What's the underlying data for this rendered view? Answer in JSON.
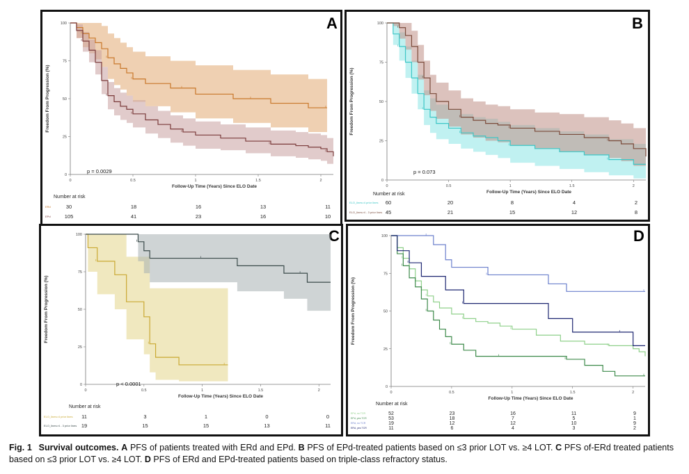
{
  "caption": {
    "fig_label": "Fig. 1",
    "title": "Survival outcomes.",
    "parts": [
      {
        "letter": "A",
        "text": "PFS of patients treated with ERd and EPd."
      },
      {
        "letter": "B",
        "text": "PFS of EPd-treated patients based on ≤3 prior LOT vs. ≥4 LOT."
      },
      {
        "letter": "C",
        "text": "PFS of-ERd treated patients based on ≤3 prior LOT vs. ≥4 LOT."
      },
      {
        "letter": "D",
        "text": "PFS of ERd and EPd-treated patients based on triple-class refractory status."
      }
    ]
  },
  "chart_data": [
    {
      "type": "line",
      "panel_letter": "A",
      "xlabel": "Follow-Up Time (Years) Since ELO Date",
      "ylabel": "Freedom From Progression (%)",
      "xlim": [
        0,
        2.1
      ],
      "ylim": [
        0,
        100
      ],
      "x_ticks": [
        0,
        0.5,
        1,
        1.5,
        2
      ],
      "x_tick_labels": [
        "0",
        "0.5",
        "1",
        "1.5",
        "2"
      ],
      "y_ticks": [
        0,
        25,
        50,
        75,
        100
      ],
      "annotation": "p = 0.0029",
      "risk_table": {
        "title": "Number at risk",
        "times": [
          0,
          0.5,
          1,
          1.5,
          2
        ],
        "rows": [
          {
            "label": "ERd",
            "counts": [
              "30",
              "18",
              "16",
              "13",
              "11"
            ]
          },
          {
            "label": "EPd",
            "counts": [
              "105",
              "41",
              "23",
              "16",
              "10"
            ]
          }
        ]
      },
      "series": [
        {
          "label": "ERd",
          "color": "#c8772a",
          "band_color": "#e2aa73",
          "x": [
            0,
            0.05,
            0.1,
            0.15,
            0.2,
            0.25,
            0.3,
            0.35,
            0.4,
            0.45,
            0.5,
            0.6,
            0.7,
            0.8,
            0.9,
            1.0,
            1.15,
            1.3,
            1.45,
            1.6,
            1.75,
            1.9,
            2.05
          ],
          "y": [
            100,
            97,
            93,
            90,
            87,
            83,
            77,
            73,
            70,
            67,
            63,
            60,
            60,
            57,
            57,
            53,
            53,
            50,
            50,
            47,
            47,
            44,
            44
          ],
          "lower": [
            100,
            90,
            84,
            80,
            76,
            71,
            63,
            59,
            56,
            52,
            48,
            45,
            45,
            41,
            41,
            37,
            37,
            34,
            34,
            31,
            31,
            28,
            28
          ],
          "upper": [
            100,
            100,
            100,
            100,
            100,
            98,
            93,
            90,
            87,
            84,
            81,
            78,
            78,
            75,
            75,
            72,
            72,
            69,
            69,
            66,
            66,
            63,
            63
          ]
        },
        {
          "label": "EPd",
          "color": "#7a3a3a",
          "band_color": "#c9a0a0",
          "x": [
            0,
            0.05,
            0.1,
            0.15,
            0.2,
            0.25,
            0.3,
            0.35,
            0.4,
            0.45,
            0.5,
            0.6,
            0.7,
            0.8,
            0.9,
            1.0,
            1.2,
            1.4,
            1.6,
            1.8,
            1.9,
            2.0,
            2.05,
            2.1
          ],
          "y": [
            100,
            95,
            88,
            82,
            74,
            62,
            52,
            48,
            45,
            43,
            40,
            36,
            33,
            30,
            28,
            26,
            24,
            22,
            20,
            19,
            18,
            17,
            15,
            12
          ],
          "lower": [
            100,
            90,
            81,
            74,
            66,
            53,
            43,
            39,
            36,
            34,
            31,
            27,
            24,
            21,
            19,
            17,
            16,
            14,
            12,
            11,
            10,
            9,
            7,
            5
          ],
          "upper": [
            100,
            99,
            94,
            89,
            82,
            71,
            61,
            57,
            54,
            52,
            49,
            45,
            42,
            39,
            37,
            35,
            33,
            31,
            29,
            28,
            27,
            26,
            24,
            21
          ]
        }
      ]
    },
    {
      "type": "line",
      "panel_letter": "B",
      "xlabel": "Follow-Up Time (Years) Since ELO Date",
      "ylabel": "Freedom From Progression (%)",
      "xlim": [
        0,
        2.1
      ],
      "ylim": [
        0,
        100
      ],
      "x_ticks": [
        0,
        0.5,
        1,
        1.5,
        2
      ],
      "x_tick_labels": [
        "0",
        "0.5",
        "1",
        "1.5",
        "2"
      ],
      "y_ticks": [
        0,
        25,
        50,
        75,
        100
      ],
      "annotation": "p = 0.073",
      "risk_table": {
        "title": "Number at risk",
        "times": [
          0,
          0.5,
          1,
          1.5,
          2
        ],
        "rows": [
          {
            "label": "ELO_lines=4 prior lines",
            "counts": [
              "60",
              "20",
              "8",
              "4",
              "2"
            ]
          },
          {
            "label": "ELO_lines>4 - 3 prior lines",
            "counts": [
              "45",
              "21",
              "15",
              "12",
              "8"
            ]
          }
        ]
      },
      "series": [
        {
          "label": "ELO_lines=4 prior lines",
          "color": "#3cc6c6",
          "band_color": "#8ce6e6",
          "x": [
            0,
            0.05,
            0.1,
            0.15,
            0.2,
            0.25,
            0.3,
            0.35,
            0.4,
            0.5,
            0.6,
            0.7,
            0.8,
            0.9,
            1.0,
            1.2,
            1.4,
            1.6,
            1.8,
            2.0,
            2.1
          ],
          "y": [
            100,
            93,
            85,
            75,
            65,
            55,
            45,
            40,
            36,
            33,
            30,
            28,
            27,
            25,
            22,
            20,
            18,
            16,
            13,
            10,
            10
          ],
          "lower": [
            100,
            86,
            76,
            65,
            55,
            45,
            35,
            30,
            26,
            23,
            20,
            18,
            16,
            14,
            11,
            9,
            7,
            5,
            3,
            1,
            1
          ],
          "upper": [
            100,
            100,
            94,
            85,
            76,
            67,
            57,
            52,
            48,
            45,
            42,
            40,
            39,
            37,
            35,
            33,
            31,
            29,
            26,
            23,
            23
          ]
        },
        {
          "label": "ELO_lines>4 - 3 prior lines",
          "color": "#7a4a3a",
          "band_color": "#bf8f86",
          "x": [
            0,
            0.05,
            0.1,
            0.15,
            0.2,
            0.25,
            0.3,
            0.35,
            0.4,
            0.5,
            0.6,
            0.7,
            0.8,
            0.9,
            1.0,
            1.2,
            1.4,
            1.6,
            1.8,
            1.9,
            2.0,
            2.1
          ],
          "y": [
            100,
            100,
            97,
            92,
            85,
            75,
            65,
            55,
            50,
            45,
            40,
            38,
            36,
            35,
            33,
            31,
            29,
            27,
            25,
            23,
            20,
            15
          ],
          "lower": [
            100,
            98,
            90,
            83,
            75,
            64,
            54,
            44,
            39,
            34,
            29,
            27,
            25,
            24,
            22,
            20,
            18,
            16,
            14,
            12,
            9,
            4
          ],
          "upper": [
            100,
            100,
            100,
            100,
            95,
            86,
            76,
            67,
            62,
            57,
            52,
            50,
            48,
            47,
            45,
            43,
            42,
            40,
            38,
            36,
            33,
            28
          ]
        }
      ]
    },
    {
      "type": "line",
      "panel_letter": "C",
      "xlabel": "Follow-Up Time (Years) Since ELO Date",
      "ylabel": "Freedom From Progression (%)",
      "xlim": [
        0,
        2.1
      ],
      "ylim": [
        0,
        100
      ],
      "x_ticks": [
        0,
        0.5,
        1,
        1.5,
        2
      ],
      "x_tick_labels": [
        "0",
        "0.5",
        "1",
        "1.5",
        "2"
      ],
      "y_ticks": [
        0,
        25,
        50,
        75,
        100
      ],
      "annotation": "p < 0.0001",
      "risk_table": {
        "title": "Number at risk",
        "times": [
          0,
          0.5,
          1,
          1.5,
          2
        ],
        "rows": [
          {
            "label": "ELO_lines=4 prior lines",
            "counts": [
              "11",
              "3",
              "1",
              "0",
              "0"
            ]
          },
          {
            "label": "ELO_lines>4 - 3 prior lines",
            "counts": [
              "19",
              "15",
              "15",
              "13",
              "11"
            ]
          }
        ]
      },
      "series": [
        {
          "label": "ELO_lines=4 prior lines",
          "color": "#c9a832",
          "band_color": "#e4d68a",
          "x": [
            0,
            0.02,
            0.1,
            0.25,
            0.35,
            0.5,
            0.55,
            0.6,
            0.8,
            1.0,
            1.2,
            1.22
          ],
          "y": [
            100,
            91,
            82,
            73,
            55,
            45,
            27,
            18,
            13,
            13,
            13,
            13
          ],
          "lower": [
            100,
            75,
            60,
            50,
            30,
            20,
            8,
            3,
            2,
            2,
            2,
            2
          ],
          "upper": [
            100,
            100,
            100,
            100,
            85,
            85,
            64,
            64,
            64,
            64,
            64,
            64
          ]
        },
        {
          "label": "ELO_lines>4 - 3 prior lines",
          "color": "#3a4a4a",
          "band_color": "#a7b0b3",
          "x": [
            0,
            0.3,
            0.45,
            0.5,
            0.55,
            0.75,
            1.0,
            1.3,
            1.5,
            1.7,
            1.85,
            1.9,
            2.1
          ],
          "y": [
            100,
            100,
            95,
            89,
            84,
            84,
            84,
            79,
            79,
            74,
            74,
            68,
            68
          ],
          "lower": [
            100,
            100,
            82,
            74,
            68,
            68,
            68,
            62,
            62,
            57,
            57,
            49,
            49
          ],
          "upper": [
            100,
            100,
            100,
            100,
            100,
            100,
            100,
            100,
            100,
            100,
            100,
            100,
            100
          ]
        }
      ]
    },
    {
      "type": "line",
      "panel_letter": "D",
      "xlabel": "Follow-Up Time (Years) Since ELO Date",
      "ylabel": "Freedom From Progression (%)",
      "xlim": [
        0,
        2.1
      ],
      "ylim": [
        0,
        100
      ],
      "x_ticks": [
        0,
        0.5,
        1,
        1.5,
        2
      ],
      "x_tick_labels": [
        "0",
        "0.5",
        "1",
        "1.5",
        "2"
      ],
      "y_ticks": [
        0,
        25,
        50,
        75,
        100
      ],
      "risk_table": {
        "title": "Number at risk",
        "times": [
          0,
          0.5,
          1,
          1.5,
          2
        ],
        "rows": [
          {
            "label": "EPd, no TCR",
            "counts": [
              "52",
              "23",
              "16",
              "11",
              "9"
            ]
          },
          {
            "label": "EPd, yes TCR",
            "counts": [
              "53",
              "18",
              "7",
              "5",
              "1"
            ]
          },
          {
            "label": "ERd, no TCR",
            "counts": [
              "19",
              "12",
              "12",
              "10",
              "9"
            ]
          },
          {
            "label": "ERd, yes TCR",
            "counts": [
              "11",
              "6",
              "4",
              "3",
              "2"
            ]
          }
        ]
      },
      "series": [
        {
          "label": "EPd, no TCR",
          "color": "#8fd08a",
          "x": [
            0,
            0.05,
            0.1,
            0.15,
            0.2,
            0.25,
            0.3,
            0.35,
            0.4,
            0.5,
            0.6,
            0.7,
            0.8,
            0.9,
            1.0,
            1.2,
            1.4,
            1.6,
            1.8,
            2.0,
            2.05,
            2.1
          ],
          "y": [
            100,
            92,
            85,
            78,
            70,
            64,
            60,
            56,
            52,
            48,
            45,
            43,
            42,
            40,
            38,
            34,
            30,
            28,
            27,
            25,
            23,
            20
          ]
        },
        {
          "label": "EPd, yes TCR",
          "color": "#3d8a4a",
          "x": [
            0,
            0.05,
            0.1,
            0.15,
            0.2,
            0.25,
            0.3,
            0.35,
            0.4,
            0.45,
            0.5,
            0.6,
            0.7,
            0.8,
            0.9,
            1.0,
            1.1,
            1.3,
            1.45,
            1.6,
            1.75,
            1.85,
            2.1
          ],
          "y": [
            100,
            88,
            80,
            72,
            66,
            58,
            50,
            44,
            38,
            33,
            28,
            24,
            20,
            20,
            20,
            20,
            20,
            20,
            18,
            14,
            10,
            7,
            7
          ]
        },
        {
          "label": "ERd, no TCR",
          "color": "#6a7fcc",
          "x": [
            0,
            0.05,
            0.3,
            0.35,
            0.45,
            0.5,
            0.8,
            1.0,
            1.3,
            1.45,
            2.1
          ],
          "y": [
            100,
            100,
            100,
            94,
            84,
            79,
            74,
            74,
            68,
            63,
            63
          ]
        },
        {
          "label": "ERd, yes TCR",
          "color": "#1c2570",
          "x": [
            0,
            0.05,
            0.15,
            0.25,
            0.3,
            0.45,
            0.6,
            1.0,
            1.3,
            1.5,
            1.9,
            2.0,
            2.1
          ],
          "y": [
            100,
            90,
            82,
            73,
            73,
            64,
            55,
            55,
            45,
            36,
            36,
            27,
            27
          ]
        }
      ]
    }
  ]
}
